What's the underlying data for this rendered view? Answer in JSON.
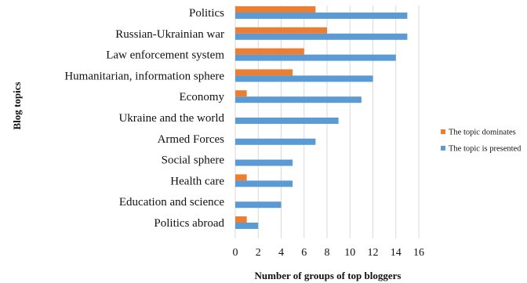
{
  "chart_data": {
    "type": "bar",
    "orientation": "horizontal",
    "categories": [
      "Politics",
      "Russian-Ukrainian war",
      "Law enforcement system",
      "Humanitarian, information sphere",
      "Economy",
      "Ukraine and the world",
      "Armed Forces",
      "Social sphere",
      "Health care",
      "Education and science",
      "Politics abroad"
    ],
    "series": [
      {
        "name": "The topic dominates",
        "color": "#ED7D31",
        "values": [
          7,
          8,
          6,
          5,
          1,
          0,
          0,
          0,
          1,
          0,
          1
        ]
      },
      {
        "name": "The topic is presented",
        "color": "#5B9BD5",
        "values": [
          15,
          15,
          14,
          12,
          11,
          9,
          7,
          5,
          5,
          4,
          2
        ]
      }
    ],
    "xlabel": "Number of groups of top bloggers",
    "ylabel": "Blog topics",
    "xlim": [
      0,
      16
    ],
    "xticks": [
      "0",
      "2",
      "4",
      "6",
      "8",
      "10",
      "12",
      "14",
      "16"
    ],
    "grid": true,
    "legend_position": "right"
  }
}
